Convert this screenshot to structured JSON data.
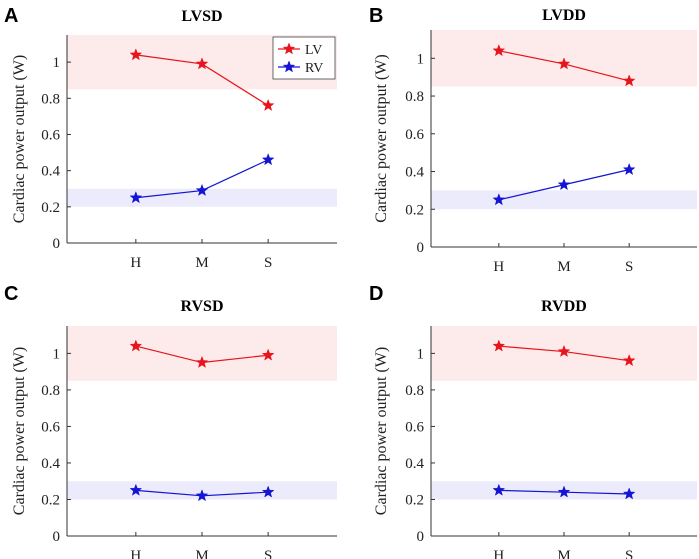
{
  "colors": {
    "lv": "#e8141b",
    "rv": "#1414d4",
    "lv_band": "#fdeaea",
    "rv_band": "#ebebfb"
  },
  "chart_data": [
    {
      "letter": "A",
      "type": "line",
      "title": "LVSD",
      "ylabel": "Cardiac power output (W)",
      "categories": [
        "H",
        "M",
        "S"
      ],
      "ylim": [
        0,
        1.15
      ],
      "yticks": [
        0,
        0.2,
        0.4,
        0.6,
        0.8,
        1
      ],
      "ytick_labels": [
        "0",
        "0.2",
        "0.4",
        "0.6",
        "0.8",
        "1"
      ],
      "bands": [
        {
          "name": "LV",
          "range": [
            0.85,
            1.15
          ]
        },
        {
          "name": "RV",
          "range": [
            0.2,
            0.3
          ]
        }
      ],
      "series": [
        {
          "name": "LV",
          "values": [
            1.04,
            0.99,
            0.76
          ]
        },
        {
          "name": "RV",
          "values": [
            0.25,
            0.29,
            0.46
          ]
        }
      ],
      "legend": {
        "show": true,
        "location": "top-right",
        "entries": [
          "LV",
          "RV"
        ]
      }
    },
    {
      "letter": "B",
      "type": "line",
      "title": "LVDD",
      "ylabel": "Cardiac power output (W)",
      "categories": [
        "H",
        "M",
        "S"
      ],
      "ylim": [
        0,
        1.15
      ],
      "yticks": [
        0,
        0.2,
        0.4,
        0.6,
        0.8,
        1
      ],
      "ytick_labels": [
        "0",
        "0.2",
        "0.4",
        "0.6",
        "0.8",
        "1"
      ],
      "bands": [
        {
          "name": "LV",
          "range": [
            0.85,
            1.15
          ]
        },
        {
          "name": "RV",
          "range": [
            0.2,
            0.3
          ]
        }
      ],
      "series": [
        {
          "name": "LV",
          "values": [
            1.04,
            0.97,
            0.88
          ]
        },
        {
          "name": "RV",
          "values": [
            0.25,
            0.33,
            0.41
          ]
        }
      ],
      "legend": {
        "show": false
      }
    },
    {
      "letter": "C",
      "type": "line",
      "title": "RVSD",
      "ylabel": "Cardiac power output (W)",
      "categories": [
        "H",
        "M",
        "S"
      ],
      "ylim": [
        0,
        1.15
      ],
      "yticks": [
        0,
        0.2,
        0.4,
        0.6,
        0.8,
        1
      ],
      "ytick_labels": [
        "0",
        "0.2",
        "0.4",
        "0.6",
        "0.8",
        "1"
      ],
      "bands": [
        {
          "name": "LV",
          "range": [
            0.85,
            1.15
          ]
        },
        {
          "name": "RV",
          "range": [
            0.2,
            0.3
          ]
        }
      ],
      "series": [
        {
          "name": "LV",
          "values": [
            1.04,
            0.95,
            0.99
          ]
        },
        {
          "name": "RV",
          "values": [
            0.25,
            0.22,
            0.24
          ]
        }
      ],
      "legend": {
        "show": false
      }
    },
    {
      "letter": "D",
      "type": "line",
      "title": "RVDD",
      "ylabel": "Cardiac power output (W)",
      "categories": [
        "H",
        "M",
        "S"
      ],
      "ylim": [
        0,
        1.15
      ],
      "yticks": [
        0,
        0.2,
        0.4,
        0.6,
        0.8,
        1
      ],
      "ytick_labels": [
        "0",
        "0.2",
        "0.4",
        "0.6",
        "0.8",
        "1"
      ],
      "bands": [
        {
          "name": "LV",
          "range": [
            0.85,
            1.15
          ]
        },
        {
          "name": "RV",
          "range": [
            0.2,
            0.3
          ]
        }
      ],
      "series": [
        {
          "name": "LV",
          "values": [
            1.04,
            1.01,
            0.96
          ]
        },
        {
          "name": "RV",
          "values": [
            0.25,
            0.24,
            0.23
          ]
        }
      ],
      "legend": {
        "show": false
      }
    }
  ]
}
